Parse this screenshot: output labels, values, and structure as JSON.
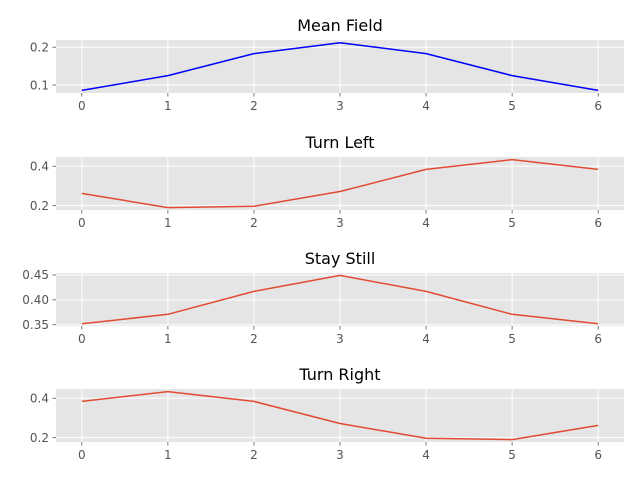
{
  "chart_data": [
    {
      "type": "line",
      "title": "Mean Field",
      "x": [
        0,
        1,
        2,
        3,
        4,
        5,
        6
      ],
      "values": [
        0.086,
        0.125,
        0.183,
        0.212,
        0.183,
        0.125,
        0.086
      ],
      "xlim": [
        -0.3,
        6.3
      ],
      "ylim": [
        0.079,
        0.219
      ],
      "yticks": [
        0.1,
        0.2
      ],
      "ytick_labels": [
        "0.1",
        "0.2"
      ],
      "xticks": [
        0,
        1,
        2,
        3,
        4,
        5,
        6
      ],
      "xtick_labels": [
        "0",
        "1",
        "2",
        "3",
        "4",
        "5",
        "6"
      ],
      "color": "#0000ff",
      "grid": true
    },
    {
      "type": "line",
      "title": "Turn Left",
      "x": [
        0,
        1,
        2,
        3,
        4,
        5,
        6
      ],
      "values": [
        0.262,
        0.19,
        0.197,
        0.272,
        0.384,
        0.434,
        0.384
      ],
      "xlim": [
        -0.3,
        6.3
      ],
      "ylim": [
        0.178,
        0.447
      ],
      "yticks": [
        0.2,
        0.4
      ],
      "ytick_labels": [
        "0.2",
        "0.4"
      ],
      "xticks": [
        0,
        1,
        2,
        3,
        4,
        5,
        6
      ],
      "xtick_labels": [
        "0",
        "1",
        "2",
        "3",
        "4",
        "5",
        "6"
      ],
      "color": "#e24a33",
      "grid": true
    },
    {
      "type": "line",
      "title": "Stay Still",
      "x": [
        0,
        1,
        2,
        3,
        4,
        5,
        6
      ],
      "values": [
        0.352,
        0.371,
        0.417,
        0.449,
        0.417,
        0.371,
        0.352
      ],
      "xlim": [
        -0.3,
        6.3
      ],
      "ylim": [
        0.3475,
        0.4539
      ],
      "yticks": [
        0.35,
        0.4,
        0.45
      ],
      "ytick_labels": [
        "0.35",
        "0.40",
        "0.45"
      ],
      "xticks": [
        0,
        1,
        2,
        3,
        4,
        5,
        6
      ],
      "xtick_labels": [
        "0",
        "1",
        "2",
        "3",
        "4",
        "5",
        "6"
      ],
      "color": "#e24a33",
      "grid": true
    },
    {
      "type": "line",
      "title": "Turn Right",
      "x": [
        0,
        1,
        2,
        3,
        4,
        5,
        6
      ],
      "values": [
        0.384,
        0.434,
        0.384,
        0.272,
        0.197,
        0.19,
        0.262
      ],
      "xlim": [
        -0.3,
        6.3
      ],
      "ylim": [
        0.178,
        0.447
      ],
      "yticks": [
        0.2,
        0.4
      ],
      "ytick_labels": [
        "0.2",
        "0.4"
      ],
      "xticks": [
        0,
        1,
        2,
        3,
        4,
        5,
        6
      ],
      "xtick_labels": [
        "0",
        "1",
        "2",
        "3",
        "4",
        "5",
        "6"
      ],
      "color": "#e24a33",
      "grid": true
    }
  ],
  "style": {
    "plot_background": "#e5e5e5",
    "grid_color": "#ffffff",
    "tick_color": "#555555",
    "title_color": "#000000"
  }
}
